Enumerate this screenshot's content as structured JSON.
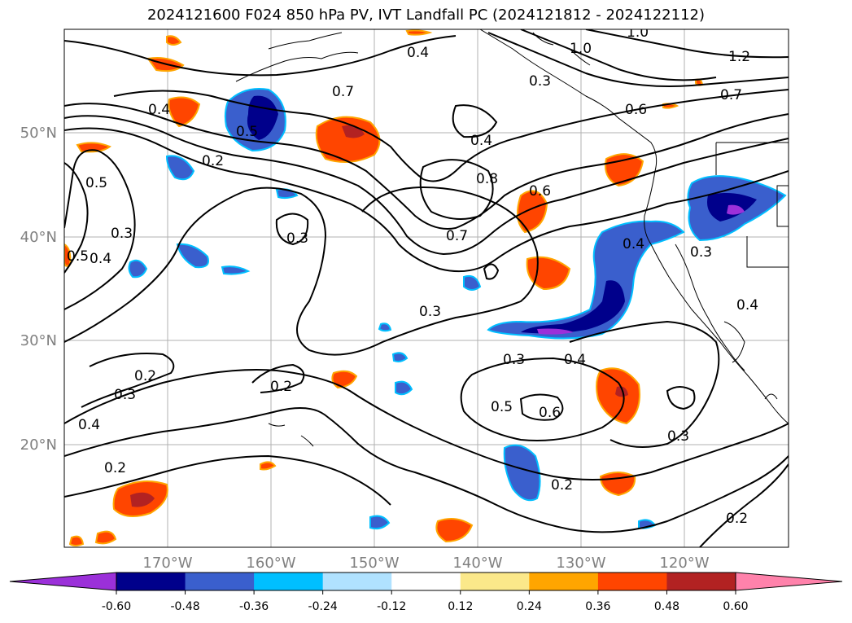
{
  "title": "2024121600 F024 850 hPa PV, IVT Landfall PC (2024121812 - 2024122112)",
  "lon_labels": [
    "170°W",
    "160°W",
    "150°W",
    "140°W",
    "130°W",
    "120°W"
  ],
  "lat_labels": [
    "50°N",
    "40°N",
    "30°N",
    "20°N"
  ],
  "colorbar": {
    "colors": [
      "#9b30d9",
      "#00008b",
      "#3a5fcd",
      "#00bfff",
      "#b0e2ff",
      "#ffffff",
      "#fbe88a",
      "#ffa500",
      "#ff4500",
      "#b22222",
      "#ff82ab"
    ],
    "tick_labels": [
      "-0.60",
      "-0.48",
      "-0.36",
      "-0.24",
      "-0.12",
      "0.12",
      "0.24",
      "0.36",
      "0.48",
      "0.60"
    ]
  },
  "contour_labels": [
    "0.2",
    "0.3",
    "0.4",
    "0.5",
    "0.6",
    "0.7",
    "0.8",
    "1.0",
    "1.2"
  ]
}
